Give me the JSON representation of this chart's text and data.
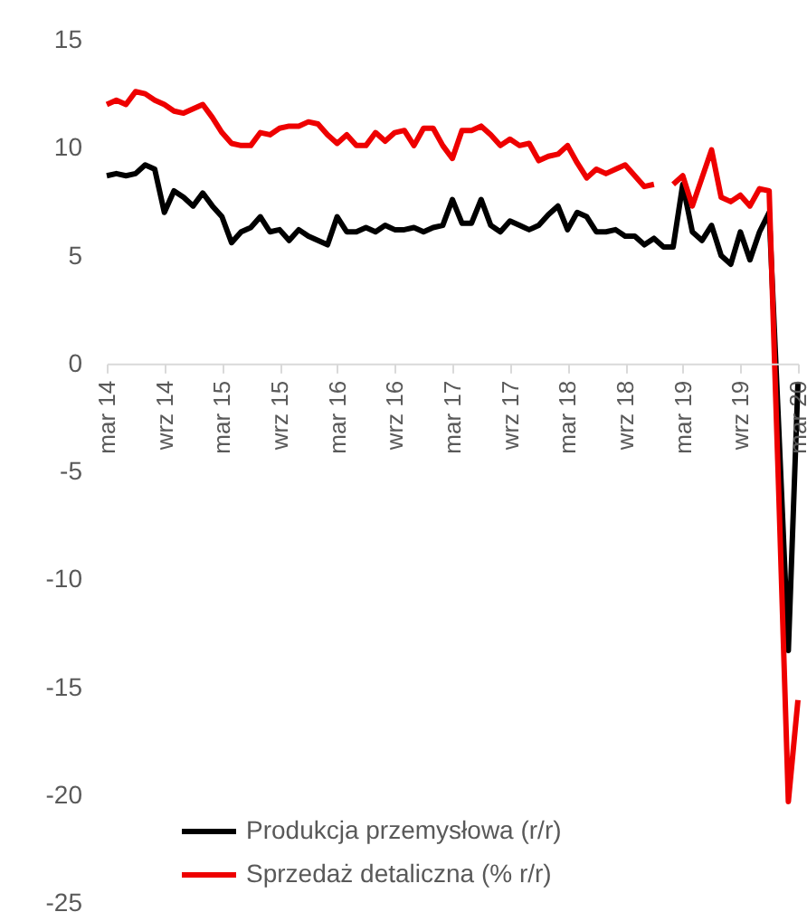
{
  "chart_data": {
    "type": "line",
    "categories": [
      "mar 14",
      null,
      null,
      null,
      null,
      null,
      "wrz 14",
      null,
      null,
      null,
      null,
      null,
      "mar 15",
      null,
      null,
      null,
      null,
      null,
      "wrz 15",
      null,
      null,
      null,
      null,
      null,
      "mar 16",
      null,
      null,
      null,
      null,
      null,
      "wrz 16",
      null,
      null,
      null,
      null,
      null,
      "mar 17",
      null,
      null,
      null,
      null,
      null,
      "wrz 17",
      null,
      null,
      null,
      null,
      null,
      "mar 18",
      null,
      null,
      null,
      null,
      null,
      "wrz 18",
      null,
      null,
      null,
      null,
      null,
      "mar 19",
      null,
      null,
      null,
      null,
      null,
      "wrz 19",
      null,
      null,
      null,
      null,
      null,
      "mar 20"
    ],
    "series": [
      {
        "name": "Produkcja przemysłowa (r/r)",
        "color": "#000000",
        "values": [
          8.7,
          8.8,
          8.7,
          8.8,
          9.2,
          9.0,
          7.0,
          8.0,
          7.7,
          7.3,
          7.9,
          7.3,
          6.8,
          5.6,
          6.1,
          6.3,
          6.8,
          6.1,
          6.2,
          5.7,
          6.2,
          5.9,
          5.7,
          5.5,
          6.8,
          6.1,
          6.1,
          6.3,
          6.1,
          6.4,
          6.2,
          6.2,
          6.3,
          6.1,
          6.3,
          6.4,
          7.6,
          6.5,
          6.5,
          7.6,
          6.4,
          6.1,
          6.6,
          6.4,
          6.2,
          6.4,
          6.9,
          7.3,
          6.2,
          7.0,
          6.8,
          6.1,
          6.1,
          6.2,
          5.9,
          5.9,
          5.5,
          5.8,
          5.4,
          5.4,
          8.3,
          6.1,
          5.7,
          6.4,
          5.0,
          4.6,
          6.1,
          4.8,
          6.1,
          7.0,
          -3,
          -13.3,
          -0.9
        ]
      },
      {
        "name": "Sprzedaż detaliczna (% r/r)",
        "color": "#ee0000",
        "values": [
          12.0,
          12.2,
          12.0,
          12.6,
          12.5,
          12.2,
          12.0,
          11.7,
          11.6,
          11.8,
          12.0,
          11.4,
          10.7,
          10.2,
          10.1,
          10.1,
          10.7,
          10.6,
          10.9,
          11.0,
          11.0,
          11.2,
          11.1,
          10.6,
          10.2,
          10.6,
          10.1,
          10.1,
          10.7,
          10.3,
          10.7,
          10.8,
          10.1,
          10.9,
          10.9,
          10.1,
          9.5,
          10.8,
          10.8,
          11.0,
          10.6,
          10.1,
          10.4,
          10.1,
          10.2,
          9.4,
          9.6,
          9.7,
          10.1,
          9.3,
          8.6,
          9.0,
          8.8,
          9.0,
          9.2,
          8.7,
          8.2,
          8.3,
          null,
          8.3,
          8.7,
          7.3,
          8.6,
          9.9,
          7.7,
          7.5,
          7.8,
          7.3,
          8.1,
          8.0,
          -6,
          -20.3,
          -15.6
        ]
      }
    ],
    "ylim": [
      -25,
      15
    ],
    "yticks": [
      -25,
      -20,
      -15,
      -10,
      -5,
      0,
      5,
      10,
      15
    ],
    "grid": false,
    "legend": "bottom",
    "marker": "none",
    "line_style": "solid"
  }
}
